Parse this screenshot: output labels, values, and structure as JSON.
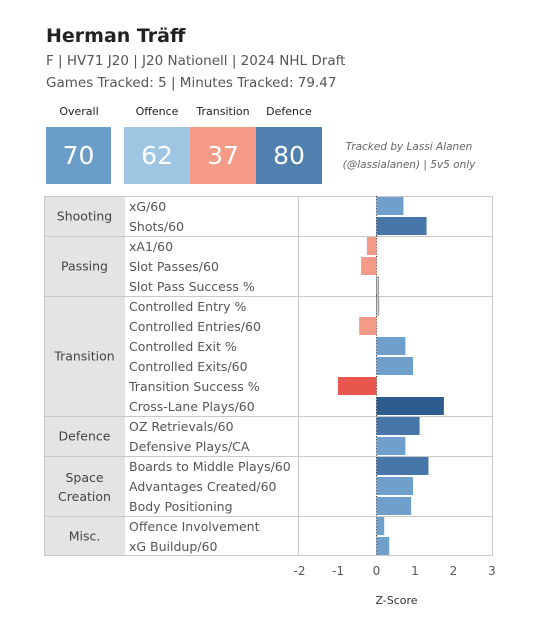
{
  "header": {
    "title": "Herman Träff",
    "subtitle1": "F | HV71 J20 | J20 Nationell | 2024 NHL Draft",
    "subtitle2": "Games Tracked: 5 | Minutes Tracked: 79.47"
  },
  "kpis": {
    "overall": {
      "label": "Overall",
      "value": "70",
      "color": "#6a9ec9"
    },
    "offence": {
      "label": "Offence",
      "value": "62",
      "color": "#9ec5e2"
    },
    "transition": {
      "label": "Transition",
      "value": "37",
      "color": "#f49a86"
    },
    "defence": {
      "label": "Defence",
      "value": "80",
      "color": "#4f7fae"
    }
  },
  "tracked_note": {
    "line1": "Tracked by Lassi Alanen",
    "line2": "(@lassialanen) | 5v5 only"
  },
  "chart_data": {
    "type": "bar",
    "orientation": "horizontal",
    "xlabel": "Z-Score",
    "xlim": [
      -2,
      3
    ],
    "xticks": [
      "-2",
      "-1",
      "0",
      "1",
      "2",
      "3"
    ],
    "zero_line": "dotted",
    "groups": [
      {
        "name": "Shooting",
        "metrics": [
          {
            "label": "xG/60",
            "value": 0.7
          },
          {
            "label": "Shots/60",
            "value": 1.3
          }
        ]
      },
      {
        "name": "Passing",
        "metrics": [
          {
            "label": "xA1/60",
            "value": -0.25
          },
          {
            "label": "Slot Passes/60",
            "value": -0.4
          },
          {
            "label": "Slot Pass Success %",
            "value": 0.02
          }
        ]
      },
      {
        "name": "Transition",
        "metrics": [
          {
            "label": "Controlled Entry %",
            "value": 0.06
          },
          {
            "label": "Controlled Entries/60",
            "value": -0.45
          },
          {
            "label": "Controlled Exit %",
            "value": 0.75
          },
          {
            "label": "Controlled Exits/60",
            "value": 0.95
          },
          {
            "label": "Transition Success %",
            "value": -1.0
          },
          {
            "label": "Cross-Lane Plays/60",
            "value": 1.75
          }
        ]
      },
      {
        "name": "Defence",
        "metrics": [
          {
            "label": "OZ Retrievals/60",
            "value": 1.12
          },
          {
            "label": "Defensive Plays/CA",
            "value": 0.75
          }
        ]
      },
      {
        "name": "Space Creation",
        "metrics": [
          {
            "label": "Boards to Middle Plays/60",
            "value": 1.35
          },
          {
            "label": "Advantages Created/60",
            "value": 0.95
          },
          {
            "label": "Body Positioning",
            "value": 0.9
          }
        ]
      },
      {
        "name": "Misc.",
        "metrics": [
          {
            "label": "Offence Involvement",
            "value": 0.2
          },
          {
            "label": "xG Buildup/60",
            "value": 0.33
          }
        ]
      }
    ]
  }
}
